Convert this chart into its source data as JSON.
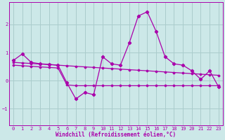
{
  "title": "",
  "xlabel": "Windchill (Refroidissement éolien,°C)",
  "ylabel": "",
  "background_color": "#cce8e8",
  "grid_color": "#aacccc",
  "line_color": "#aa00aa",
  "xlim": [
    -0.5,
    23.5
  ],
  "ylim": [
    -1.6,
    2.8
  ],
  "yticks": [
    -1,
    0,
    1,
    2
  ],
  "xticks": [
    0,
    1,
    2,
    3,
    4,
    5,
    6,
    7,
    8,
    9,
    10,
    11,
    12,
    13,
    14,
    15,
    16,
    17,
    18,
    19,
    20,
    21,
    22,
    23
  ],
  "series1": [
    0.72,
    0.95,
    0.65,
    0.6,
    0.58,
    0.55,
    -0.08,
    -0.65,
    -0.42,
    -0.5,
    0.85,
    0.6,
    0.55,
    1.35,
    2.3,
    2.45,
    1.75,
    0.85,
    0.6,
    0.55,
    0.35,
    0.05,
    0.35,
    -0.22
  ],
  "series2": [
    0.65,
    0.63,
    0.61,
    0.59,
    0.57,
    0.55,
    0.53,
    0.51,
    0.49,
    0.47,
    0.45,
    0.43,
    0.41,
    0.39,
    0.37,
    0.35,
    0.33,
    0.31,
    0.29,
    0.27,
    0.25,
    0.23,
    0.21,
    0.19
  ],
  "series3": [
    0.55,
    0.53,
    0.51,
    0.49,
    0.47,
    0.45,
    -0.15,
    -0.18,
    -0.18,
    -0.18,
    -0.18,
    -0.18,
    -0.18,
    -0.18,
    -0.18,
    -0.18,
    -0.18,
    -0.18,
    -0.18,
    -0.18,
    -0.18,
    -0.18,
    -0.18,
    -0.18
  ]
}
